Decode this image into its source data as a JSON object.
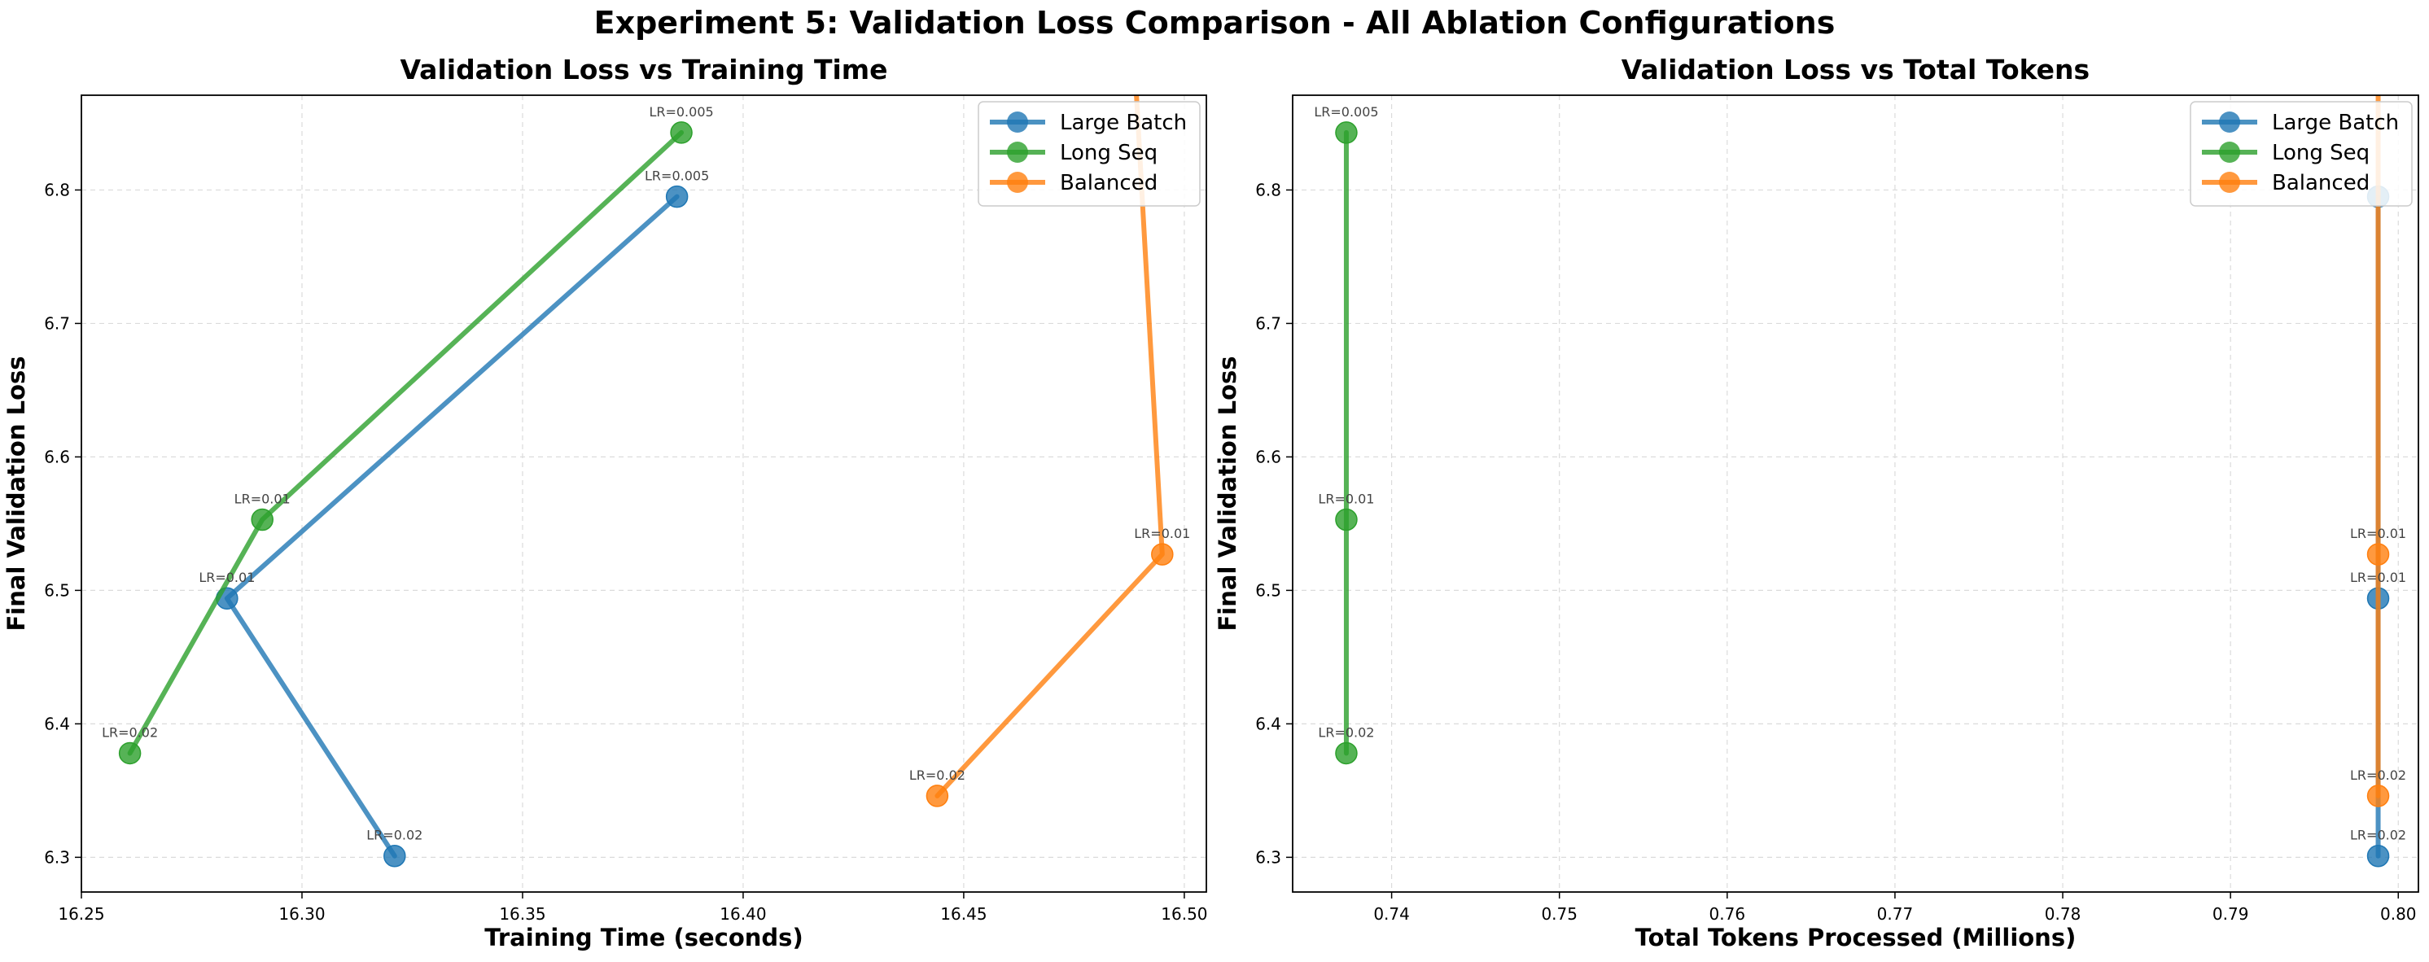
{
  "suptitle": "Experiment 5: Validation Loss Comparison - All Ablation Configurations",
  "colors": {
    "Large Batch": "#1f77b4",
    "Long Seq": "#2ca02c",
    "Balanced": "#ff7f0e"
  },
  "chart_data": [
    {
      "type": "line",
      "title": "Validation Loss vs Training Time",
      "xlabel": "Training Time (seconds)",
      "ylabel": "Final Validation Loss",
      "xlim": [
        16.25,
        16.505
      ],
      "ylim": [
        6.274,
        6.871
      ],
      "xticks": [
        16.25,
        16.3,
        16.35,
        16.4,
        16.45,
        16.5
      ],
      "xtick_labels": [
        "16.25",
        "16.30",
        "16.35",
        "16.40",
        "16.45",
        "16.50"
      ],
      "yticks": [
        6.3,
        6.4,
        6.5,
        6.6,
        6.7,
        6.8
      ],
      "ytick_labels": [
        "6.3",
        "6.4",
        "6.5",
        "6.6",
        "6.7",
        "6.8"
      ],
      "grid": true,
      "legend": "top-right",
      "series": [
        {
          "name": "Large Batch",
          "x": [
            16.321,
            16.283,
            16.385
          ],
          "y": [
            6.301,
            6.494,
            6.795
          ],
          "labels": [
            "LR=0.02",
            "LR=0.01",
            "LR=0.005"
          ]
        },
        {
          "name": "Long Seq",
          "x": [
            16.261,
            16.291,
            16.386
          ],
          "y": [
            6.378,
            6.553,
            6.843
          ],
          "labels": [
            "LR=0.02",
            "LR=0.01",
            "LR=0.005"
          ]
        },
        {
          "name": "Balanced",
          "x": [
            16.444,
            16.495,
            16.489
          ],
          "y": [
            6.346,
            6.527,
            6.88
          ],
          "labels": [
            "LR=0.02",
            "LR=0.01",
            ""
          ]
        }
      ]
    },
    {
      "type": "line",
      "title": "Validation Loss vs Total Tokens",
      "xlabel": "Total Tokens Processed (Millions)",
      "ylabel": "Final Validation Loss",
      "xlim": [
        0.7341,
        0.8012
      ],
      "ylim": [
        6.274,
        6.871
      ],
      "xticks": [
        0.74,
        0.75,
        0.76,
        0.77,
        0.78,
        0.79,
        0.8
      ],
      "xtick_labels": [
        "0.74",
        "0.75",
        "0.76",
        "0.77",
        "0.78",
        "0.79",
        "0.80"
      ],
      "yticks": [
        6.3,
        6.4,
        6.5,
        6.6,
        6.7,
        6.8
      ],
      "ytick_labels": [
        "6.3",
        "6.4",
        "6.5",
        "6.6",
        "6.7",
        "6.8"
      ],
      "grid": true,
      "legend": "top-right",
      "series": [
        {
          "name": "Large Batch",
          "x": [
            0.7988,
            0.7988,
            0.7988
          ],
          "y": [
            6.301,
            6.494,
            6.795
          ],
          "labels": [
            "LR=0.02",
            "LR=0.01",
            ""
          ]
        },
        {
          "name": "Long Seq",
          "x": [
            0.7373,
            0.7373,
            0.7373
          ],
          "y": [
            6.378,
            6.553,
            6.843
          ],
          "labels": [
            "LR=0.02",
            "LR=0.01",
            "LR=0.005"
          ]
        },
        {
          "name": "Balanced",
          "x": [
            0.7988,
            0.7988,
            0.7988
          ],
          "y": [
            6.346,
            6.527,
            6.88
          ],
          "labels": [
            "LR=0.02",
            "LR=0.01",
            ""
          ]
        }
      ]
    }
  ]
}
